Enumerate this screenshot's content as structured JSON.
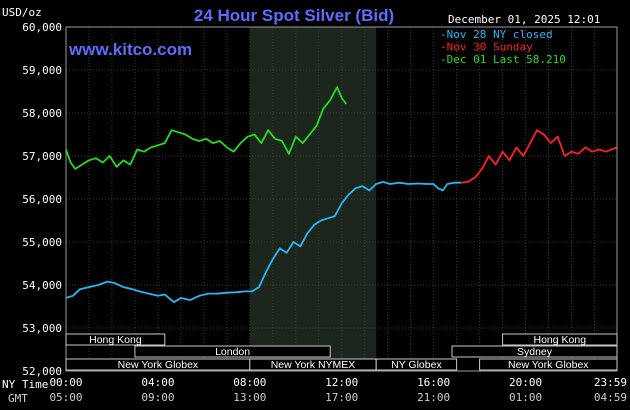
{
  "header": {
    "title": "24 Hour Spot Silver (Bid)",
    "site": "www.kitco.com",
    "datetime": "December 01, 2025 12:01",
    "ylabel": "USD/oz"
  },
  "legend": [
    {
      "label": "Nov 28 NY closed",
      "color": "#29b6f6"
    },
    {
      "label": "Nov 30 Sunday",
      "color": "#ff2020"
    },
    {
      "label": "Dec 01 Last 58.210",
      "color": "#22dd22"
    }
  ],
  "time_labels": {
    "row1_prefix": "NY Time",
    "row2_prefix": "GMT",
    "ny": [
      "00:00",
      "04:00",
      "08:00",
      "12:00",
      "16:00",
      "20:00",
      "23:59"
    ],
    "gmt": [
      "05:00",
      "09:00",
      "13:00",
      "17:00",
      "21:00",
      "01:00",
      "04:59"
    ]
  },
  "sessions": [
    {
      "label": "Hong Kong",
      "start": 0,
      "end": 4.3
    },
    {
      "label": "London",
      "start": 3,
      "end": 11.5
    },
    {
      "label": "New York Globex",
      "start": 0,
      "end": 8
    },
    {
      "label": "New York NYMEX",
      "start": 8,
      "end": 13.5
    },
    {
      "label": "NY Globex",
      "start": 13.5,
      "end": 17
    },
    {
      "label": "Hong Kong",
      "start": 19,
      "end": 23.98
    },
    {
      "label": "Sydney",
      "start": 16.8,
      "end": 23.98
    },
    {
      "label": "New York Globex",
      "start": 18,
      "end": 23.98
    }
  ],
  "chart_data": {
    "type": "line",
    "title": "24 Hour Spot Silver (Bid)",
    "ylabel": "USD/oz",
    "xlabel": "",
    "ylim": [
      52000,
      60000
    ],
    "yticks": [
      52000,
      53000,
      54000,
      55000,
      56000,
      57000,
      58000,
      59000,
      60000
    ],
    "ytick_labels": [
      "52,000",
      "53,000",
      "54,000",
      "55,000",
      "56,000",
      "57,000",
      "58,000",
      "59,000",
      "60,000"
    ],
    "xlim_hours": [
      0,
      23.98
    ],
    "highlight_band_hours": [
      8,
      13.5
    ],
    "grid": true,
    "series": [
      {
        "name": "Nov 28 NY closed",
        "color": "#29b6f6",
        "x": [
          0,
          0.3,
          0.6,
          1,
          1.4,
          1.8,
          2.1,
          2.5,
          2.9,
          3.2,
          3.6,
          4,
          4.3,
          4.7,
          5,
          5.4,
          5.8,
          6.2,
          6.6,
          7,
          7.4,
          7.8,
          8.1,
          8.4,
          8.7,
          9,
          9.3,
          9.6,
          9.9,
          10.2,
          10.5,
          10.8,
          11.1,
          11.4,
          11.7,
          12,
          12.3,
          12.6,
          12.9,
          13.2,
          13.5,
          13.8,
          14.1,
          14.5,
          14.9,
          15.3,
          15.7,
          16,
          16.2,
          16.4,
          16.6,
          16.9,
          17.2
        ],
        "y": [
          53700,
          53750,
          53900,
          53950,
          54000,
          54080,
          54050,
          53950,
          53900,
          53850,
          53800,
          53750,
          53780,
          53600,
          53700,
          53650,
          53750,
          53800,
          53800,
          53820,
          53830,
          53850,
          53850,
          53950,
          54300,
          54600,
          54850,
          54750,
          55000,
          54900,
          55200,
          55400,
          55500,
          55550,
          55600,
          55900,
          56100,
          56250,
          56300,
          56200,
          56350,
          56400,
          56350,
          56380,
          56350,
          56360,
          56350,
          56350,
          56250,
          56200,
          56350,
          56380,
          56380
        ]
      },
      {
        "name": "Nov 30 Sunday",
        "color": "#ff2020",
        "x": [
          17.2,
          17.5,
          17.8,
          18.1,
          18.4,
          18.7,
          19,
          19.3,
          19.6,
          19.9,
          20.2,
          20.5,
          20.8,
          21.1,
          21.4,
          21.7,
          22,
          22.3,
          22.6,
          22.9,
          23.2,
          23.5,
          23.98
        ],
        "y": [
          56380,
          56400,
          56500,
          56700,
          57000,
          56800,
          57100,
          56900,
          57200,
          57000,
          57300,
          57600,
          57500,
          57300,
          57450,
          57000,
          57100,
          57050,
          57200,
          57100,
          57150,
          57100,
          57200
        ]
      },
      {
        "name": "Dec 01 Last 58.210",
        "color": "#22dd22",
        "x": [
          0,
          0.2,
          0.4,
          0.7,
          1,
          1.3,
          1.6,
          1.9,
          2.2,
          2.5,
          2.8,
          3.1,
          3.4,
          3.7,
          4,
          4.3,
          4.6,
          4.9,
          5.2,
          5.5,
          5.8,
          6.1,
          6.4,
          6.7,
          7,
          7.3,
          7.6,
          7.9,
          8.2,
          8.5,
          8.8,
          9.1,
          9.4,
          9.7,
          10,
          10.3,
          10.6,
          10.9,
          11.2,
          11.5,
          11.8,
          12,
          12.2
        ],
        "y": [
          57150,
          56850,
          56700,
          56800,
          56900,
          56950,
          56850,
          57000,
          56750,
          56900,
          56800,
          57150,
          57100,
          57200,
          57250,
          57300,
          57600,
          57550,
          57500,
          57400,
          57350,
          57400,
          57300,
          57350,
          57200,
          57100,
          57300,
          57450,
          57500,
          57300,
          57600,
          57400,
          57350,
          57050,
          57450,
          57300,
          57500,
          57700,
          58100,
          58300,
          58600,
          58350,
          58210
        ]
      }
    ]
  }
}
